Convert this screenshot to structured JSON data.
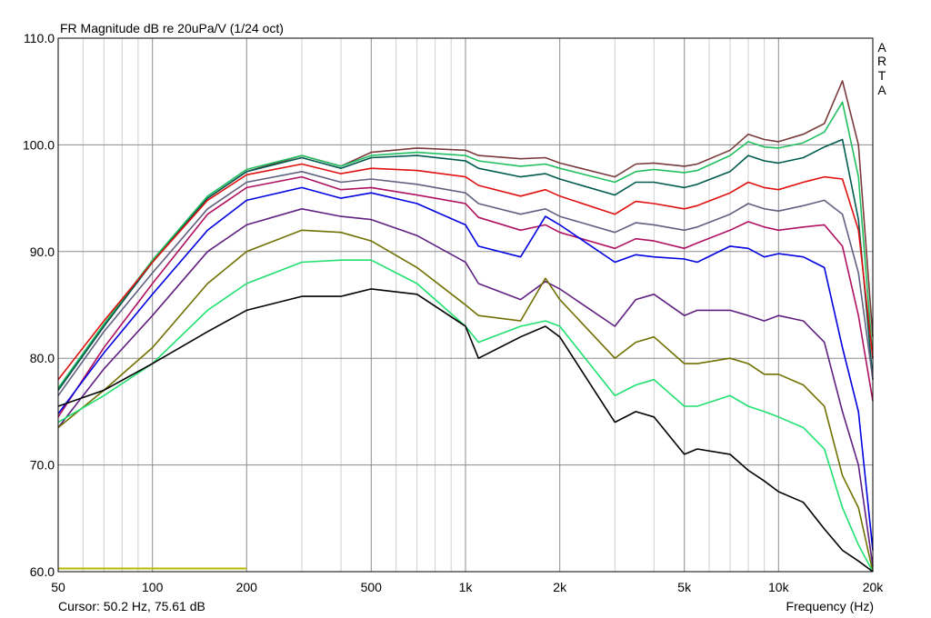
{
  "chart_data": {
    "type": "line",
    "title": "FR Magnitude dB re 20uPa/V (1/24 oct)",
    "brand_letters": [
      "A",
      "R",
      "T",
      "A"
    ],
    "xlabel": "Frequency (Hz)",
    "ylabel": "",
    "x_scale": "log",
    "xlim": [
      50,
      20000
    ],
    "ylim": [
      60,
      110
    ],
    "grid": true,
    "x_tick_labels": [
      {
        "value": 50,
        "label": "50"
      },
      {
        "value": 100,
        "label": "100"
      },
      {
        "value": 200,
        "label": "200"
      },
      {
        "value": 500,
        "label": "500"
      },
      {
        "value": 1000,
        "label": "1k"
      },
      {
        "value": 2000,
        "label": "2k"
      },
      {
        "value": 5000,
        "label": "5k"
      },
      {
        "value": 10000,
        "label": "10k"
      },
      {
        "value": 20000,
        "label": "20k"
      }
    ],
    "y_tick_labels": [
      {
        "value": 60,
        "label": "60.0"
      },
      {
        "value": 70,
        "label": "70.0"
      },
      {
        "value": 80,
        "label": "80.0"
      },
      {
        "value": 90,
        "label": "90.0"
      },
      {
        "value": 100,
        "label": "100.0"
      },
      {
        "value": 110,
        "label": "110.0"
      }
    ],
    "cursor_text": "Cursor: 50.2 Hz, 75.61 dB",
    "marker_line": {
      "x": [
        50,
        200
      ],
      "y": 60.3,
      "color": "#b8b800"
    },
    "x": [
      50,
      70,
      100,
      150,
      200,
      300,
      400,
      500,
      700,
      1000,
      1100,
      1500,
      1800,
      2000,
      3000,
      3500,
      4000,
      5000,
      5500,
      7000,
      8000,
      9000,
      10000,
      12000,
      14000,
      16000,
      18000,
      20000
    ],
    "series": [
      {
        "color": "#7a3a3a",
        "values": [
          77.0,
          83.0,
          89.0,
          95.0,
          97.5,
          99.0,
          98.0,
          99.3,
          99.7,
          99.5,
          99.0,
          98.7,
          98.8,
          98.3,
          97.0,
          98.2,
          98.3,
          98.0,
          98.2,
          99.5,
          101.0,
          100.5,
          100.3,
          101.0,
          102.0,
          106.0,
          100.0,
          82.0
        ]
      },
      {
        "color": "#20c060",
        "values": [
          77.2,
          83.2,
          89.2,
          95.2,
          97.7,
          99.0,
          98.0,
          99.0,
          99.3,
          99.0,
          98.5,
          98.0,
          98.2,
          97.8,
          96.5,
          97.5,
          97.7,
          97.4,
          97.6,
          99.0,
          100.3,
          99.8,
          99.7,
          100.2,
          101.2,
          104.0,
          97.0,
          80.0
        ]
      },
      {
        "color": "#005a50",
        "values": [
          77.0,
          83.0,
          89.0,
          95.0,
          97.5,
          98.8,
          97.8,
          98.8,
          99.0,
          98.5,
          97.8,
          97.0,
          97.3,
          96.8,
          95.3,
          96.5,
          96.5,
          96.0,
          96.3,
          97.5,
          99.0,
          98.5,
          98.3,
          98.8,
          99.8,
          100.5,
          93.0,
          78.0
        ]
      },
      {
        "color": "#e01010",
        "values": [
          78.0,
          83.5,
          89.0,
          94.8,
          97.2,
          98.2,
          97.3,
          97.8,
          97.6,
          97.0,
          96.2,
          95.2,
          95.8,
          95.2,
          93.5,
          94.7,
          94.5,
          94.0,
          94.3,
          95.5,
          96.5,
          96.0,
          95.8,
          96.5,
          97.0,
          96.8,
          92.0,
          80.0
        ]
      },
      {
        "color": "#606080",
        "values": [
          76.5,
          82.5,
          88.0,
          94.0,
          96.5,
          97.5,
          96.5,
          96.8,
          96.3,
          95.5,
          94.5,
          93.5,
          94.0,
          93.3,
          91.8,
          92.7,
          92.5,
          92.0,
          92.3,
          93.5,
          94.5,
          94.0,
          93.8,
          94.3,
          94.8,
          93.5,
          88.0,
          78.0
        ]
      },
      {
        "color": "#b01060",
        "values": [
          74.5,
          81.0,
          87.0,
          93.5,
          96.0,
          97.0,
          95.8,
          96.0,
          95.3,
          94.5,
          93.2,
          92.0,
          92.5,
          91.8,
          90.3,
          91.2,
          91.0,
          90.3,
          90.8,
          92.0,
          92.8,
          92.3,
          92.0,
          92.3,
          92.5,
          90.5,
          84.0,
          76.0
        ]
      },
      {
        "color": "#0000e0",
        "values": [
          74.8,
          80.5,
          86.0,
          92.0,
          94.8,
          96.0,
          95.0,
          95.5,
          94.5,
          92.5,
          90.5,
          89.5,
          93.3,
          92.5,
          89.0,
          89.7,
          89.5,
          89.3,
          89.0,
          90.5,
          90.3,
          89.5,
          89.8,
          89.5,
          88.5,
          81.0,
          75.0,
          62.0
        ]
      },
      {
        "color": "#602080",
        "values": [
          73.5,
          79.0,
          84.0,
          90.0,
          92.5,
          94.0,
          93.3,
          93.0,
          91.5,
          89.0,
          87.0,
          85.5,
          87.2,
          86.5,
          83.0,
          85.5,
          86.0,
          84.0,
          84.5,
          84.5,
          84.0,
          83.5,
          84.0,
          83.5,
          81.5,
          75.0,
          70.0,
          60.5
        ]
      },
      {
        "color": "#707000",
        "values": [
          73.5,
          77.0,
          81.0,
          87.0,
          90.0,
          92.0,
          91.8,
          91.0,
          88.5,
          85.0,
          84.0,
          83.5,
          87.5,
          85.5,
          80.0,
          81.5,
          82.0,
          79.5,
          79.5,
          80.0,
          79.5,
          78.5,
          78.5,
          77.5,
          75.5,
          69.0,
          66.0,
          60.0
        ]
      },
      {
        "color": "#20e070",
        "values": [
          74.0,
          76.5,
          79.5,
          84.5,
          87.0,
          89.0,
          89.2,
          89.2,
          87.0,
          83.0,
          81.5,
          83.0,
          83.5,
          83.0,
          76.5,
          77.5,
          78.0,
          75.5,
          75.5,
          76.5,
          75.5,
          75.0,
          74.5,
          73.5,
          71.5,
          66.0,
          62.5,
          60.0
        ]
      },
      {
        "color": "#000000",
        "values": [
          75.5,
          77.0,
          79.5,
          82.5,
          84.5,
          85.8,
          85.8,
          86.5,
          86.0,
          83.0,
          80.0,
          82.0,
          83.0,
          82.0,
          74.0,
          75.0,
          74.5,
          71.0,
          71.5,
          71.0,
          69.5,
          68.5,
          67.5,
          66.5,
          64.0,
          62.0,
          61.0,
          60.0
        ]
      }
    ]
  }
}
